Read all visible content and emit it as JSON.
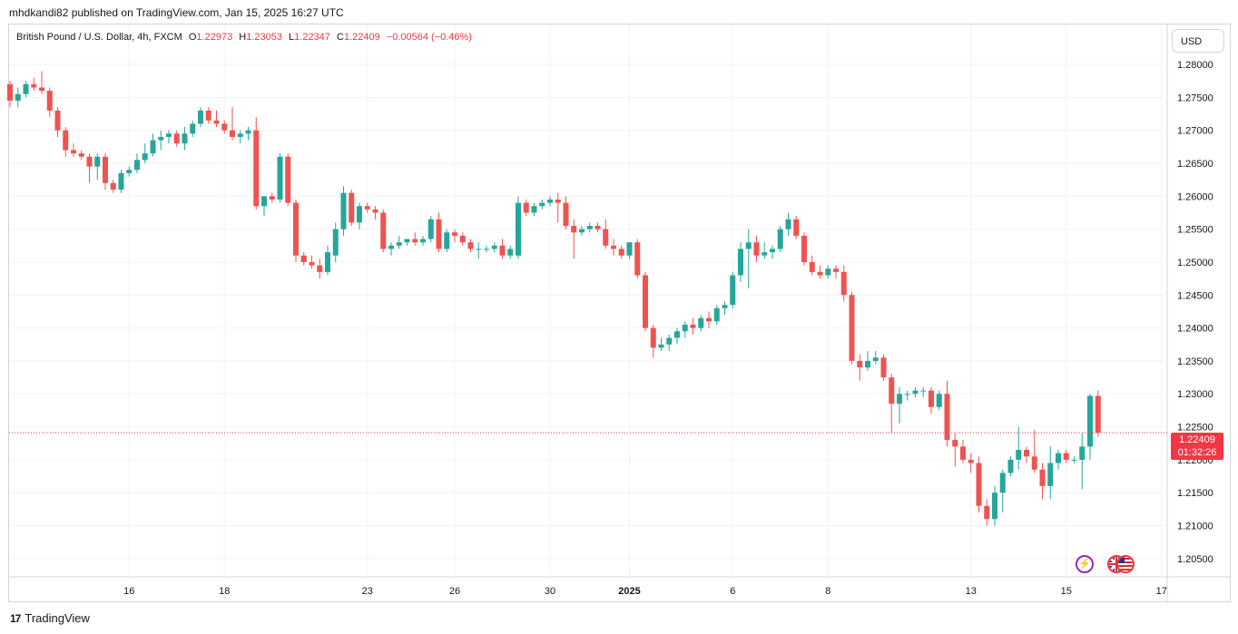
{
  "header": {
    "publisher_text": "mhdkandi82 published on TradingView.com, Jan 15, 2025 16:27 UTC",
    "symbol_text": "British Pound / U.S. Dollar, 4h, FXCM",
    "o_label": "O",
    "o_value": "1.22973",
    "h_label": "H",
    "h_value": "1.23053",
    "l_label": "L",
    "l_value": "1.22347",
    "c_label": "C",
    "c_value": "1.22409",
    "change_text": "−0.00564 (−0.46%)"
  },
  "currency_button": "USD",
  "price_tag": {
    "price": "1.22409",
    "countdown": "01:32:26"
  },
  "footer": {
    "logo_text": "17",
    "brand": "TradingView"
  },
  "colors": {
    "up": "#26a69a",
    "down": "#ef5350",
    "grid": "#f0f3fa",
    "last_line": "#f23645"
  },
  "chart_data": {
    "type": "candlestick",
    "symbol": "GBPUSD",
    "interval": "4h",
    "ylim": [
      1.2025,
      1.284
    ],
    "y_ticks": [
      "1.20500",
      "1.21000",
      "1.21500",
      "1.22000",
      "1.22500",
      "1.23000",
      "1.23500",
      "1.24000",
      "1.24500",
      "1.25000",
      "1.25500",
      "1.26000",
      "1.26500",
      "1.27000",
      "1.27500",
      "1.28000"
    ],
    "x_ticks": [
      {
        "label": "16",
        "index": 15,
        "bold": false
      },
      {
        "label": "18",
        "index": 27,
        "bold": false
      },
      {
        "label": "23",
        "index": 45,
        "bold": false
      },
      {
        "label": "26",
        "index": 56,
        "bold": false
      },
      {
        "label": "30",
        "index": 68,
        "bold": false
      },
      {
        "label": "2025",
        "index": 78,
        "bold": true
      },
      {
        "label": "6",
        "index": 91,
        "bold": false
      },
      {
        "label": "8",
        "index": 103,
        "bold": false
      },
      {
        "label": "13",
        "index": 121,
        "bold": false
      },
      {
        "label": "15",
        "index": 133,
        "bold": false
      },
      {
        "label": "17",
        "index": 145,
        "bold": false
      }
    ],
    "last_price": 1.22409,
    "candles": [
      [
        1.277,
        1.2775,
        1.2735,
        1.2745
      ],
      [
        1.2745,
        1.2765,
        1.2735,
        1.2755
      ],
      [
        1.2755,
        1.2775,
        1.275,
        1.277
      ],
      [
        1.277,
        1.278,
        1.276,
        1.2765
      ],
      [
        1.2765,
        1.279,
        1.2755,
        1.276
      ],
      [
        1.276,
        1.2765,
        1.272,
        1.273
      ],
      [
        1.273,
        1.2735,
        1.269,
        1.27
      ],
      [
        1.27,
        1.2705,
        1.266,
        1.267
      ],
      [
        1.267,
        1.268,
        1.266,
        1.2665
      ],
      [
        1.2665,
        1.267,
        1.2655,
        1.266
      ],
      [
        1.266,
        1.2665,
        1.262,
        1.2645
      ],
      [
        1.2645,
        1.2665,
        1.2625,
        1.266
      ],
      [
        1.266,
        1.2665,
        1.261,
        1.262
      ],
      [
        1.262,
        1.2625,
        1.2605,
        1.261
      ],
      [
        1.261,
        1.264,
        1.2605,
        1.2635
      ],
      [
        1.2635,
        1.2645,
        1.263,
        1.264
      ],
      [
        1.264,
        1.2665,
        1.2635,
        1.2655
      ],
      [
        1.2655,
        1.268,
        1.265,
        1.2665
      ],
      [
        1.2665,
        1.2695,
        1.266,
        1.2685
      ],
      [
        1.2685,
        1.27,
        1.267,
        1.269
      ],
      [
        1.269,
        1.27,
        1.268,
        1.2695
      ],
      [
        1.2695,
        1.27,
        1.2675,
        1.268
      ],
      [
        1.268,
        1.2705,
        1.267,
        1.2695
      ],
      [
        1.2695,
        1.2715,
        1.269,
        1.271
      ],
      [
        1.271,
        1.2735,
        1.2705,
        1.273
      ],
      [
        1.273,
        1.2735,
        1.271,
        1.2715
      ],
      [
        1.2715,
        1.273,
        1.2705,
        1.271
      ],
      [
        1.271,
        1.2715,
        1.2695,
        1.27
      ],
      [
        1.27,
        1.2735,
        1.2685,
        1.269
      ],
      [
        1.269,
        1.27,
        1.268,
        1.2695
      ],
      [
        1.2695,
        1.2705,
        1.2685,
        1.27
      ],
      [
        1.27,
        1.272,
        1.258,
        1.2585
      ],
      [
        1.2585,
        1.26,
        1.257,
        1.26
      ],
      [
        1.26,
        1.2605,
        1.259,
        1.2595
      ],
      [
        1.2595,
        1.2665,
        1.259,
        1.266
      ],
      [
        1.266,
        1.2665,
        1.2585,
        1.259
      ],
      [
        1.259,
        1.2595,
        1.25,
        1.251
      ],
      [
        1.251,
        1.2515,
        1.2495,
        1.25
      ],
      [
        1.25,
        1.251,
        1.249,
        1.2495
      ],
      [
        1.2495,
        1.2505,
        1.2475,
        1.2485
      ],
      [
        1.2485,
        1.2525,
        1.248,
        1.2515
      ],
      [
        1.251,
        1.256,
        1.25,
        1.255
      ],
      [
        1.255,
        1.2615,
        1.254,
        1.2605
      ],
      [
        1.2605,
        1.261,
        1.2555,
        1.256
      ],
      [
        1.256,
        1.259,
        1.255,
        1.2585
      ],
      [
        1.2585,
        1.259,
        1.2575,
        1.258
      ],
      [
        1.258,
        1.2585,
        1.2565,
        1.2575
      ],
      [
        1.2575,
        1.258,
        1.2515,
        1.252
      ],
      [
        1.252,
        1.253,
        1.251,
        1.2525
      ],
      [
        1.2525,
        1.254,
        1.252,
        1.253
      ],
      [
        1.253,
        1.2535,
        1.2525,
        1.2535
      ],
      [
        1.2535,
        1.2545,
        1.2525,
        1.253
      ],
      [
        1.253,
        1.254,
        1.2525,
        1.2535
      ],
      [
        1.2535,
        1.257,
        1.253,
        1.2565
      ],
      [
        1.2565,
        1.2575,
        1.2515,
        1.252
      ],
      [
        1.252,
        1.255,
        1.2515,
        1.2545
      ],
      [
        1.2545,
        1.255,
        1.253,
        1.254
      ],
      [
        1.254,
        1.2545,
        1.2525,
        1.253
      ],
      [
        1.253,
        1.2535,
        1.2515,
        1.252
      ],
      [
        1.252,
        1.253,
        1.2505,
        1.252
      ],
      [
        1.252,
        1.2525,
        1.2515,
        1.252
      ],
      [
        1.252,
        1.253,
        1.2515,
        1.2525
      ],
      [
        1.2525,
        1.2535,
        1.2505,
        1.251
      ],
      [
        1.251,
        1.2525,
        1.2505,
        1.252
      ],
      [
        1.251,
        1.26,
        1.2505,
        1.259
      ],
      [
        1.259,
        1.2595,
        1.257,
        1.2575
      ],
      [
        1.2575,
        1.259,
        1.257,
        1.2585
      ],
      [
        1.2585,
        1.2595,
        1.258,
        1.259
      ],
      [
        1.259,
        1.26,
        1.2585,
        1.2595
      ],
      [
        1.2595,
        1.2605,
        1.256,
        1.259
      ],
      [
        1.259,
        1.26,
        1.255,
        1.2555
      ],
      [
        1.2555,
        1.2565,
        1.2505,
        1.2545
      ],
      [
        1.2545,
        1.2555,
        1.254,
        1.255
      ],
      [
        1.255,
        1.256,
        1.2545,
        1.2555
      ],
      [
        1.2555,
        1.256,
        1.2545,
        1.255
      ],
      [
        1.255,
        1.2565,
        1.252,
        1.2525
      ],
      [
        1.2525,
        1.2535,
        1.251,
        1.252
      ],
      [
        1.252,
        1.2525,
        1.2505,
        1.251
      ],
      [
        1.251,
        1.253,
        1.2505,
        1.253
      ],
      [
        1.253,
        1.2535,
        1.2475,
        1.248
      ],
      [
        1.248,
        1.2485,
        1.2395,
        1.24
      ],
      [
        1.24,
        1.2405,
        1.2355,
        1.237
      ],
      [
        1.237,
        1.2385,
        1.2365,
        1.2375
      ],
      [
        1.2375,
        1.239,
        1.2365,
        1.2385
      ],
      [
        1.2385,
        1.24,
        1.2375,
        1.2395
      ],
      [
        1.2395,
        1.241,
        1.2385,
        1.2405
      ],
      [
        1.2405,
        1.2415,
        1.239,
        1.24
      ],
      [
        1.24,
        1.242,
        1.2395,
        1.2415
      ],
      [
        1.2415,
        1.2425,
        1.24,
        1.241
      ],
      [
        1.241,
        1.2435,
        1.2405,
        1.243
      ],
      [
        1.243,
        1.244,
        1.242,
        1.2435
      ],
      [
        1.2435,
        1.2485,
        1.243,
        1.248
      ],
      [
        1.248,
        1.253,
        1.247,
        1.252
      ],
      [
        1.252,
        1.255,
        1.246,
        1.253
      ],
      [
        1.253,
        1.254,
        1.25,
        1.251
      ],
      [
        1.251,
        1.253,
        1.2505,
        1.2515
      ],
      [
        1.2515,
        1.2525,
        1.2505,
        1.252
      ],
      [
        1.252,
        1.2555,
        1.2515,
        1.255
      ],
      [
        1.255,
        1.2575,
        1.254,
        1.2565
      ],
      [
        1.2565,
        1.257,
        1.2535,
        1.254
      ],
      [
        1.254,
        1.2545,
        1.2495,
        1.25
      ],
      [
        1.25,
        1.251,
        1.248,
        1.2485
      ],
      [
        1.2485,
        1.2495,
        1.2475,
        1.248
      ],
      [
        1.248,
        1.2495,
        1.2475,
        1.249
      ],
      [
        1.249,
        1.2495,
        1.2475,
        1.2485
      ],
      [
        1.2485,
        1.2495,
        1.244,
        1.245
      ],
      [
        1.245,
        1.2455,
        1.2345,
        1.235
      ],
      [
        1.235,
        1.236,
        1.232,
        1.234
      ],
      [
        1.234,
        1.2365,
        1.2335,
        1.235
      ],
      [
        1.235,
        1.2365,
        1.2345,
        1.2355
      ],
      [
        1.2355,
        1.236,
        1.232,
        1.2325
      ],
      [
        1.2325,
        1.233,
        1.224,
        1.2285
      ],
      [
        1.2285,
        1.231,
        1.2255,
        1.23
      ],
      [
        1.23,
        1.2305,
        1.229,
        1.23
      ],
      [
        1.23,
        1.231,
        1.2295,
        1.2305
      ],
      [
        1.2305,
        1.231,
        1.2295,
        1.2305
      ],
      [
        1.2305,
        1.231,
        1.227,
        1.228
      ],
      [
        1.228,
        1.2305,
        1.2275,
        1.23
      ],
      [
        1.23,
        1.232,
        1.222,
        1.223
      ],
      [
        1.223,
        1.224,
        1.219,
        1.222
      ],
      [
        1.222,
        1.223,
        1.2195,
        1.22
      ],
      [
        1.22,
        1.221,
        1.218,
        1.2195
      ],
      [
        1.2195,
        1.2205,
        1.212,
        1.213
      ],
      [
        1.213,
        1.214,
        1.21,
        1.211
      ],
      [
        1.211,
        1.216,
        1.21,
        1.215
      ],
      [
        1.215,
        1.2185,
        1.212,
        1.218
      ],
      [
        1.218,
        1.2205,
        1.2175,
        1.22
      ],
      [
        1.22,
        1.225,
        1.2185,
        1.2215
      ],
      [
        1.2215,
        1.222,
        1.2195,
        1.2205
      ],
      [
        1.2205,
        1.2245,
        1.218,
        1.2185
      ],
      [
        1.2185,
        1.2195,
        1.214,
        1.216
      ],
      [
        1.216,
        1.222,
        1.214,
        1.2195
      ],
      [
        1.2195,
        1.2215,
        1.2185,
        1.221
      ],
      [
        1.221,
        1.2215,
        1.2195,
        1.22
      ],
      [
        1.22,
        1.2205,
        1.2195,
        1.22
      ],
      [
        1.22,
        1.224,
        1.2155,
        1.222
      ],
      [
        1.222,
        1.23,
        1.22,
        1.2297
      ],
      [
        1.2297,
        1.2305,
        1.2235,
        1.2241
      ]
    ]
  }
}
